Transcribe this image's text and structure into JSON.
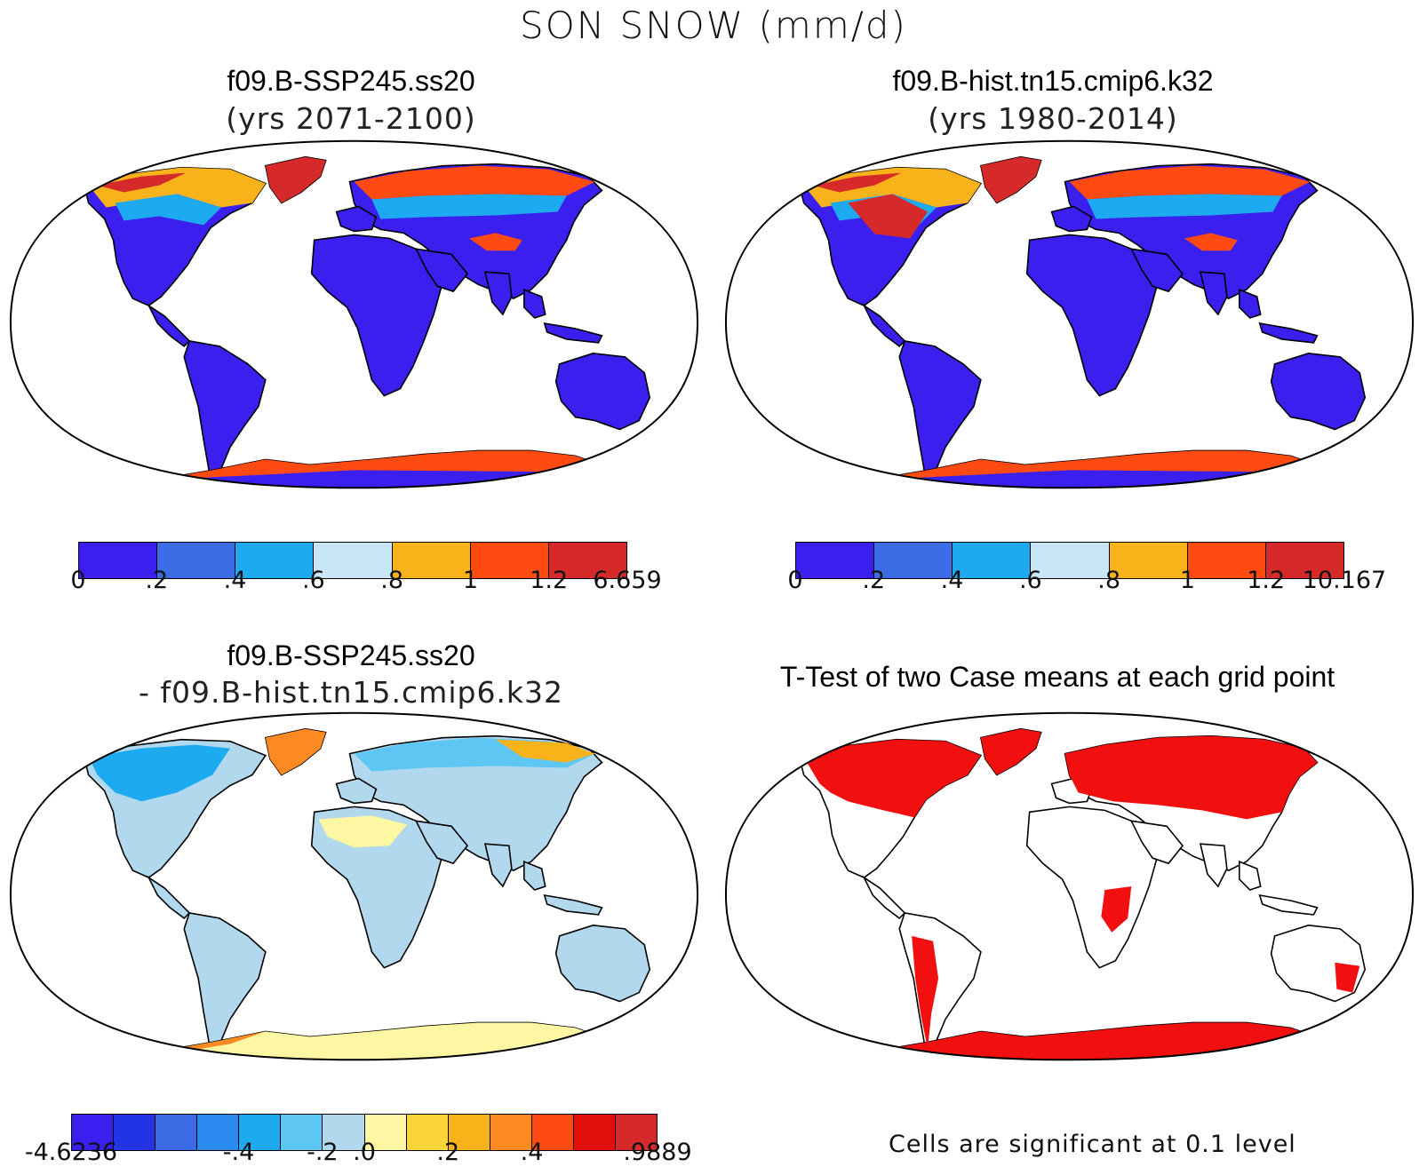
{
  "title": "SON SNOW (mm/d)",
  "panels": [
    {
      "case": "f09.B-SSP245.ss20",
      "subtitle": "(yrs 2071-2100)",
      "colorbar": {
        "colors": [
          "#3a1fef",
          "#3b6ce6",
          "#1eaaf0",
          "#c8e6f5",
          "#f9b31a",
          "#ff4a12",
          "#d62a2a"
        ],
        "labels": [
          "0",
          ".2",
          ".4",
          ".6",
          ".8",
          "1",
          "1.2",
          "6.659"
        ]
      }
    },
    {
      "case": "f09.B-hist.tn15.cmip6.k32",
      "subtitle": "(yrs 1980-2014)",
      "colorbar": {
        "colors": [
          "#3a1fef",
          "#3b6ce6",
          "#1eaaf0",
          "#c8e6f5",
          "#f9b31a",
          "#ff4a12",
          "#d62a2a"
        ],
        "labels": [
          "0",
          ".2",
          ".4",
          ".6",
          ".8",
          "1",
          "1.2",
          "10.167"
        ]
      }
    },
    {
      "case": "f09.B-SSP245.ss20",
      "subtitle": "- f09.B-hist.tn15.cmip6.k32",
      "colorbar": {
        "colors": [
          "#3a1fef",
          "#2334e6",
          "#3b6ce6",
          "#2a8af0",
          "#1eaaf0",
          "#5ec6f2",
          "#b2d8ee",
          "#fdf6a2",
          "#f9d53a",
          "#f9b31a",
          "#fb8a22",
          "#ff4a12",
          "#e30f0f",
          "#d62a2a"
        ],
        "labels": [
          "-4.6236",
          "-.4",
          "-.2",
          ".0",
          ".2",
          ".4",
          ".9889"
        ]
      }
    },
    {
      "case": "T-Test of two Case means at each grid point",
      "note": "Cells are significant at 0.1 level"
    }
  ]
}
